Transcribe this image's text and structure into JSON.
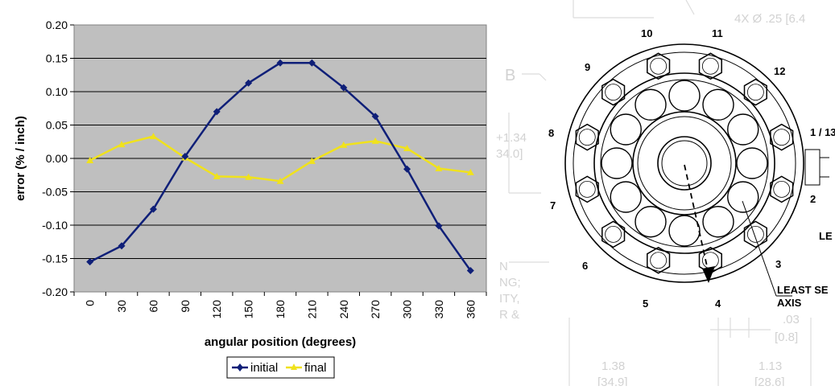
{
  "chart_data": {
    "type": "line",
    "xlabel": "angular position (degrees)",
    "ylabel": "error (% / inch)",
    "x": [
      0,
      30,
      60,
      90,
      120,
      150,
      180,
      210,
      240,
      270,
      300,
      330,
      360
    ],
    "ylim": [
      -0.2,
      0.2
    ],
    "yticks": [
      "0.20",
      "0.15",
      "0.10",
      "0.05",
      "0.00",
      "-0.05",
      "-0.10",
      "-0.15",
      "-0.20"
    ],
    "grid": true,
    "legend_position": "bottom",
    "series": [
      {
        "name": "initial",
        "color": "#0f1f78",
        "marker": "diamond",
        "values": [
          -0.155,
          -0.131,
          -0.076,
          0.003,
          0.07,
          0.113,
          0.143,
          0.143,
          0.106,
          0.063,
          -0.016,
          -0.101,
          -0.168
        ]
      },
      {
        "name": "final",
        "color": "#f0e21c",
        "marker": "triangle",
        "values": [
          -0.003,
          0.021,
          0.033,
          0.001,
          -0.027,
          -0.028,
          -0.034,
          -0.004,
          0.02,
          0.026,
          0.015,
          -0.015,
          -0.021
        ]
      }
    ]
  },
  "drawing": {
    "bolt_numbers": [
      "10",
      "11",
      "12",
      "1 / 13",
      "2",
      "3",
      "4",
      "5",
      "6",
      "7",
      "8",
      "9"
    ],
    "label_le": "LE",
    "axis_note_line1": "LEAST SE",
    "axis_note_line2": "AXIS",
    "background_text": [
      "4X Ø .25 [6.4",
      "B",
      "+1.34",
      "34.0]",
      "NG;",
      "ITY,",
      "R &",
      "N",
      ".03",
      "[0.8]",
      "1.38",
      "[34.9]",
      "1.13",
      "[28.6]"
    ]
  }
}
